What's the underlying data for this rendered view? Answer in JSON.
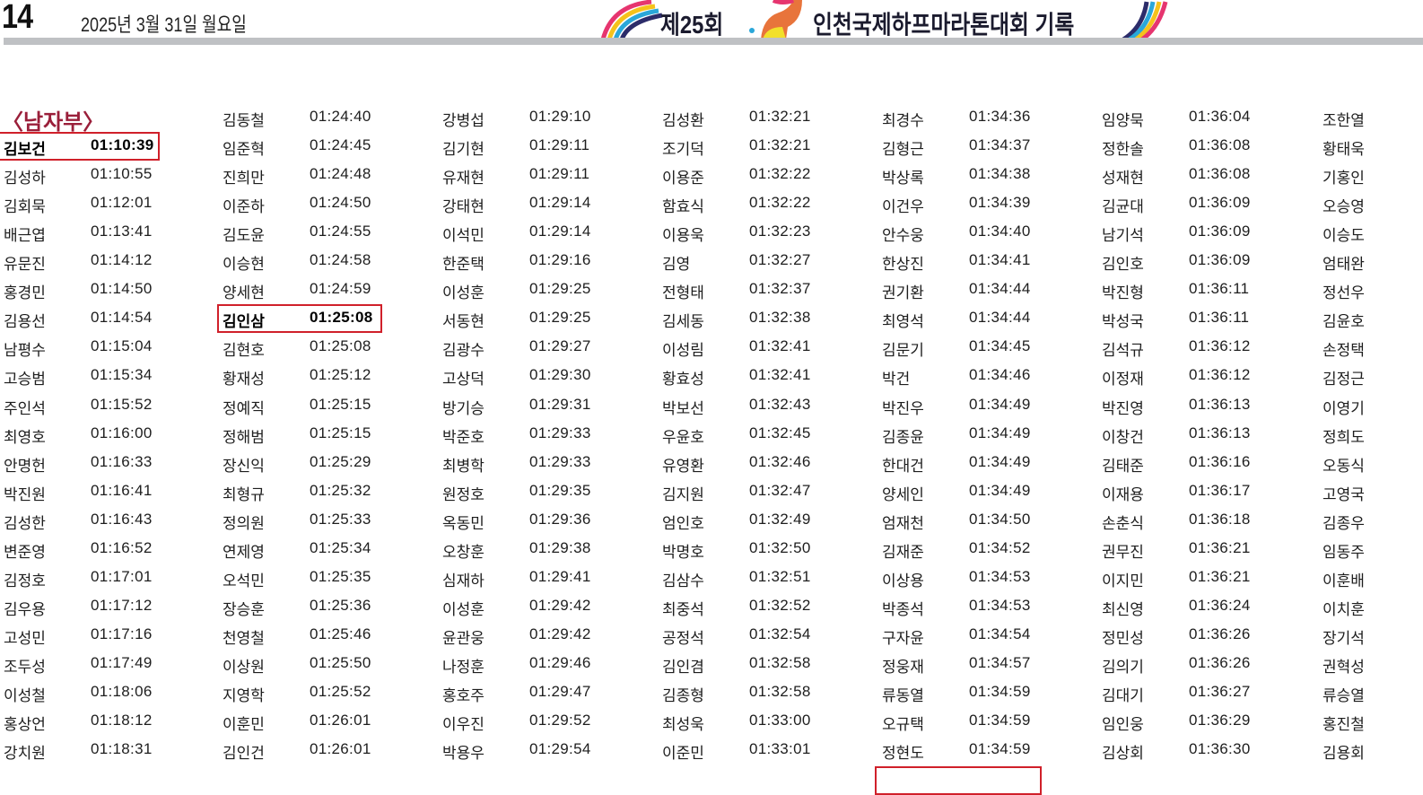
{
  "header": {
    "page_number": "14",
    "date": "2025년 3월 31일 월요일",
    "title_left": "제25회",
    "title_right": "인천국제하프마라톤대회 기록",
    "rule_color": "#bfc1c4"
  },
  "section_label": "〈남자부〉",
  "highlight_color": "#d0202a",
  "columns": [
    {
      "rows": [
        [
          "김보건",
          "01:10:39"
        ],
        [
          "김성하",
          "01:10:55"
        ],
        [
          "김회묵",
          "01:12:01"
        ],
        [
          "배근엽",
          "01:13:41"
        ],
        [
          "유문진",
          "01:14:12"
        ],
        [
          "홍경민",
          "01:14:50"
        ],
        [
          "김용선",
          "01:14:54"
        ],
        [
          "남평수",
          "01:15:04"
        ],
        [
          "고승범",
          "01:15:34"
        ],
        [
          "주인석",
          "01:15:52"
        ],
        [
          "최영호",
          "01:16:00"
        ],
        [
          "안명헌",
          "01:16:33"
        ],
        [
          "박진원",
          "01:16:41"
        ],
        [
          "김성한",
          "01:16:43"
        ],
        [
          "변준영",
          "01:16:52"
        ],
        [
          "김정호",
          "01:17:01"
        ],
        [
          "김우용",
          "01:17:12"
        ],
        [
          "고성민",
          "01:17:16"
        ],
        [
          "조두성",
          "01:17:49"
        ],
        [
          "이성철",
          "01:18:06"
        ],
        [
          "홍상언",
          "01:18:12"
        ],
        [
          "강치원",
          "01:18:31"
        ]
      ],
      "highlight": 0,
      "offset": 1
    },
    {
      "rows": [
        [
          "김동철",
          "01:24:40"
        ],
        [
          "임준혁",
          "01:24:45"
        ],
        [
          "진희만",
          "01:24:48"
        ],
        [
          "이준하",
          "01:24:50"
        ],
        [
          "김도윤",
          "01:24:55"
        ],
        [
          "이승현",
          "01:24:58"
        ],
        [
          "양세현",
          "01:24:59"
        ],
        [
          "김인삼",
          "01:25:08"
        ],
        [
          "김현호",
          "01:25:08"
        ],
        [
          "황재성",
          "01:25:12"
        ],
        [
          "정예직",
          "01:25:15"
        ],
        [
          "정해범",
          "01:25:15"
        ],
        [
          "장신익",
          "01:25:29"
        ],
        [
          "최형규",
          "01:25:32"
        ],
        [
          "정의원",
          "01:25:33"
        ],
        [
          "연제영",
          "01:25:34"
        ],
        [
          "오석민",
          "01:25:35"
        ],
        [
          "장승훈",
          "01:25:36"
        ],
        [
          "천영철",
          "01:25:46"
        ],
        [
          "이상원",
          "01:25:50"
        ],
        [
          "지영학",
          "01:25:52"
        ],
        [
          "이훈민",
          "01:26:01"
        ],
        [
          "김인건",
          "01:26:01"
        ]
      ],
      "highlight": 7,
      "offset": 0
    },
    {
      "rows": [
        [
          "강병섭",
          "01:29:10"
        ],
        [
          "김기현",
          "01:29:11"
        ],
        [
          "유재현",
          "01:29:11"
        ],
        [
          "강태현",
          "01:29:14"
        ],
        [
          "이석민",
          "01:29:14"
        ],
        [
          "한준택",
          "01:29:16"
        ],
        [
          "이성훈",
          "01:29:25"
        ],
        [
          "서동현",
          "01:29:25"
        ],
        [
          "김광수",
          "01:29:27"
        ],
        [
          "고상덕",
          "01:29:30"
        ],
        [
          "방기승",
          "01:29:31"
        ],
        [
          "박준호",
          "01:29:33"
        ],
        [
          "최병학",
          "01:29:33"
        ],
        [
          "원정호",
          "01:29:35"
        ],
        [
          "옥동민",
          "01:29:36"
        ],
        [
          "오창훈",
          "01:29:38"
        ],
        [
          "심재하",
          "01:29:41"
        ],
        [
          "이성훈",
          "01:29:42"
        ],
        [
          "윤관웅",
          "01:29:42"
        ],
        [
          "나정훈",
          "01:29:46"
        ],
        [
          "홍호주",
          "01:29:47"
        ],
        [
          "이우진",
          "01:29:52"
        ],
        [
          "박용우",
          "01:29:54"
        ]
      ],
      "offset": 0
    },
    {
      "rows": [
        [
          "김성환",
          "01:32:21"
        ],
        [
          "조기덕",
          "01:32:21"
        ],
        [
          "이용준",
          "01:32:22"
        ],
        [
          "함효식",
          "01:32:22"
        ],
        [
          "이용욱",
          "01:32:23"
        ],
        [
          "김영",
          "01:32:27"
        ],
        [
          "전형태",
          "01:32:37"
        ],
        [
          "김세동",
          "01:32:38"
        ],
        [
          "이성림",
          "01:32:41"
        ],
        [
          "황효성",
          "01:32:41"
        ],
        [
          "박보선",
          "01:32:43"
        ],
        [
          "우윤호",
          "01:32:45"
        ],
        [
          "유영환",
          "01:32:46"
        ],
        [
          "김지원",
          "01:32:47"
        ],
        [
          "엄인호",
          "01:32:49"
        ],
        [
          "박명호",
          "01:32:50"
        ],
        [
          "김삼수",
          "01:32:51"
        ],
        [
          "최중석",
          "01:32:52"
        ],
        [
          "공정석",
          "01:32:54"
        ],
        [
          "김인겸",
          "01:32:58"
        ],
        [
          "김종형",
          "01:32:58"
        ],
        [
          "최성욱",
          "01:33:00"
        ],
        [
          "이준민",
          "01:33:01"
        ]
      ],
      "offset": 0
    },
    {
      "rows": [
        [
          "최경수",
          "01:34:36"
        ],
        [
          "김형근",
          "01:34:37"
        ],
        [
          "박상록",
          "01:34:38"
        ],
        [
          "이건우",
          "01:34:39"
        ],
        [
          "안수웅",
          "01:34:40"
        ],
        [
          "한상진",
          "01:34:41"
        ],
        [
          "권기환",
          "01:34:44"
        ],
        [
          "최영석",
          "01:34:44"
        ],
        [
          "김문기",
          "01:34:45"
        ],
        [
          "박건",
          "01:34:46"
        ],
        [
          "박진우",
          "01:34:49"
        ],
        [
          "김종윤",
          "01:34:49"
        ],
        [
          "한대건",
          "01:34:49"
        ],
        [
          "양세인",
          "01:34:49"
        ],
        [
          "엄재천",
          "01:34:50"
        ],
        [
          "김재준",
          "01:34:52"
        ],
        [
          "이상용",
          "01:34:53"
        ],
        [
          "박종석",
          "01:34:53"
        ],
        [
          "구자윤",
          "01:34:54"
        ],
        [
          "정웅재",
          "01:34:57"
        ],
        [
          "류동열",
          "01:34:59"
        ],
        [
          "오규택",
          "01:34:59"
        ],
        [
          "정현도",
          "01:34:59"
        ]
      ],
      "offset": 0
    },
    {
      "rows": [
        [
          "임양묵",
          "01:36:04"
        ],
        [
          "정한솔",
          "01:36:08"
        ],
        [
          "성재현",
          "01:36:08"
        ],
        [
          "김균대",
          "01:36:09"
        ],
        [
          "남기석",
          "01:36:09"
        ],
        [
          "김인호",
          "01:36:09"
        ],
        [
          "박진형",
          "01:36:11"
        ],
        [
          "박성국",
          "01:36:11"
        ],
        [
          "김석규",
          "01:36:12"
        ],
        [
          "이정재",
          "01:36:12"
        ],
        [
          "박진영",
          "01:36:13"
        ],
        [
          "이창건",
          "01:36:13"
        ],
        [
          "김태준",
          "01:36:16"
        ],
        [
          "이재용",
          "01:36:17"
        ],
        [
          "손춘식",
          "01:36:18"
        ],
        [
          "권무진",
          "01:36:21"
        ],
        [
          "이지민",
          "01:36:21"
        ],
        [
          "최신영",
          "01:36:24"
        ],
        [
          "정민성",
          "01:36:26"
        ],
        [
          "김의기",
          "01:36:26"
        ],
        [
          "김대기",
          "01:36:27"
        ],
        [
          "임인웅",
          "01:36:29"
        ],
        [
          "김상회",
          "01:36:30"
        ]
      ],
      "offset": 0
    },
    {
      "rows": [
        [
          "조한열",
          ""
        ],
        [
          "황태욱",
          ""
        ],
        [
          "기홍인",
          ""
        ],
        [
          "오승영",
          ""
        ],
        [
          "이승도",
          ""
        ],
        [
          "엄태완",
          ""
        ],
        [
          "정선우",
          ""
        ],
        [
          "김윤호",
          ""
        ],
        [
          "손정택",
          ""
        ],
        [
          "김정근",
          ""
        ],
        [
          "이영기",
          ""
        ],
        [
          "정희도",
          ""
        ],
        [
          "오동식",
          ""
        ],
        [
          "고영국",
          ""
        ],
        [
          "김종우",
          ""
        ],
        [
          "임동주",
          ""
        ],
        [
          "이훈배",
          ""
        ],
        [
          "이치훈",
          ""
        ],
        [
          "장기석",
          ""
        ],
        [
          "권혁성",
          ""
        ],
        [
          "류승열",
          ""
        ],
        [
          "홍진철",
          ""
        ],
        [
          "김용회",
          ""
        ]
      ],
      "offset": 0
    }
  ]
}
